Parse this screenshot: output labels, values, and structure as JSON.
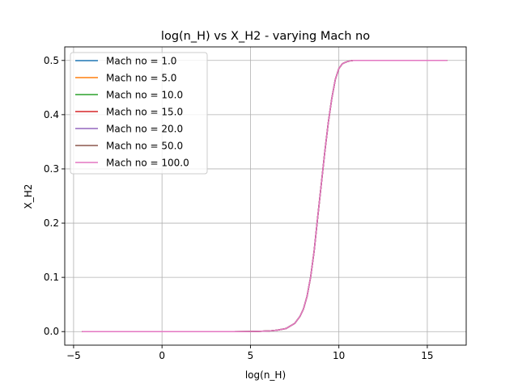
{
  "chart_data": {
    "type": "line",
    "title": "log(n_H) vs X_H2 - varying Mach no",
    "xlabel": "log(n_H)",
    "ylabel": "X_H2",
    "xlim": [
      -5.5,
      17.2
    ],
    "ylim": [
      -0.025,
      0.525
    ],
    "xticks": [
      -5,
      0,
      5,
      10,
      15
    ],
    "yticks": [
      0.0,
      0.1,
      0.2,
      0.3,
      0.4,
      0.5
    ],
    "xtick_labels": [
      "−5",
      "0",
      "5",
      "10",
      "15"
    ],
    "ytick_labels": [
      "0.0",
      "0.1",
      "0.2",
      "0.3",
      "0.4",
      "0.5"
    ],
    "grid": true,
    "legend_position": "upper-left",
    "x": [
      -4.5,
      -2,
      0,
      2,
      4,
      5,
      5.5,
      6,
      6.5,
      7,
      7.5,
      7.8,
      8,
      8.2,
      8.4,
      8.6,
      8.8,
      9,
      9.2,
      9.4,
      9.6,
      9.8,
      10,
      10.2,
      10.4,
      10.6,
      10.8,
      11,
      12,
      14,
      16.1
    ],
    "series": [
      {
        "name": "Mach no = 1.0",
        "color": "#1f77b4",
        "values": [
          0,
          0,
          0,
          0,
          0,
          0.0002,
          0.0005,
          0.001,
          0.0025,
          0.0055,
          0.015,
          0.028,
          0.042,
          0.065,
          0.1,
          0.148,
          0.21,
          0.27,
          0.33,
          0.385,
          0.43,
          0.465,
          0.485,
          0.494,
          0.497,
          0.499,
          0.5,
          0.5,
          0.5,
          0.5,
          0.5
        ]
      },
      {
        "name": "Mach no = 5.0",
        "color": "#ff7f0e",
        "values": [
          0,
          0,
          0,
          0,
          0,
          0.0002,
          0.0005,
          0.001,
          0.0025,
          0.0055,
          0.015,
          0.028,
          0.042,
          0.065,
          0.1,
          0.148,
          0.21,
          0.27,
          0.33,
          0.385,
          0.43,
          0.465,
          0.485,
          0.494,
          0.497,
          0.499,
          0.5,
          0.5,
          0.5,
          0.5,
          0.5
        ]
      },
      {
        "name": "Mach no = 10.0",
        "color": "#2ca02c",
        "values": [
          0,
          0,
          0,
          0,
          0,
          0.0002,
          0.0005,
          0.001,
          0.0025,
          0.0055,
          0.015,
          0.028,
          0.042,
          0.065,
          0.1,
          0.148,
          0.21,
          0.27,
          0.33,
          0.385,
          0.43,
          0.465,
          0.485,
          0.494,
          0.497,
          0.499,
          0.5,
          0.5,
          0.5,
          0.5,
          0.5
        ]
      },
      {
        "name": "Mach no = 15.0",
        "color": "#d62728",
        "values": [
          0,
          0,
          0,
          0,
          0,
          0.0002,
          0.0005,
          0.001,
          0.0025,
          0.0055,
          0.015,
          0.028,
          0.042,
          0.065,
          0.1,
          0.148,
          0.21,
          0.27,
          0.33,
          0.385,
          0.43,
          0.465,
          0.485,
          0.494,
          0.497,
          0.499,
          0.5,
          0.5,
          0.5,
          0.5,
          0.5
        ]
      },
      {
        "name": "Mach no = 20.0",
        "color": "#9467bd",
        "values": [
          0,
          0,
          0,
          0,
          0,
          0.0002,
          0.0005,
          0.001,
          0.0025,
          0.0055,
          0.015,
          0.028,
          0.042,
          0.065,
          0.1,
          0.148,
          0.21,
          0.27,
          0.33,
          0.385,
          0.43,
          0.465,
          0.485,
          0.494,
          0.497,
          0.499,
          0.5,
          0.5,
          0.5,
          0.5,
          0.5
        ]
      },
      {
        "name": "Mach no = 50.0",
        "color": "#8c564b",
        "values": [
          0,
          0,
          0,
          0,
          0,
          0.0002,
          0.0005,
          0.001,
          0.0025,
          0.0055,
          0.015,
          0.028,
          0.042,
          0.065,
          0.1,
          0.148,
          0.21,
          0.27,
          0.33,
          0.385,
          0.43,
          0.465,
          0.485,
          0.494,
          0.497,
          0.499,
          0.5,
          0.5,
          0.5,
          0.5,
          0.5
        ]
      },
      {
        "name": "Mach no = 100.0",
        "color": "#e377c2",
        "values": [
          0,
          0,
          0,
          0,
          0,
          0.0002,
          0.0005,
          0.001,
          0.0025,
          0.0055,
          0.015,
          0.028,
          0.042,
          0.065,
          0.1,
          0.148,
          0.21,
          0.27,
          0.33,
          0.385,
          0.43,
          0.465,
          0.485,
          0.494,
          0.497,
          0.499,
          0.5,
          0.5,
          0.5,
          0.5,
          0.5
        ]
      }
    ]
  }
}
